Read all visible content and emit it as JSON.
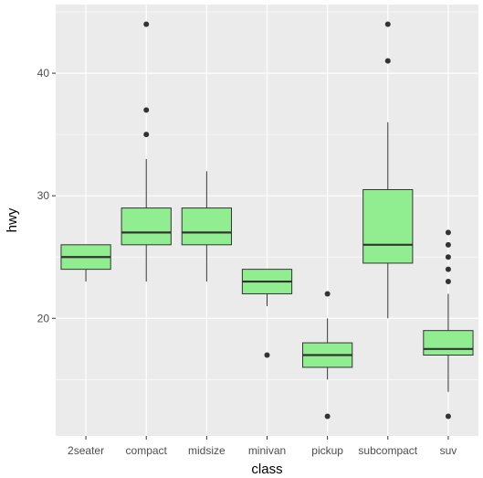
{
  "chart_data": {
    "type": "boxplot",
    "xlabel": "class",
    "ylabel": "hwy",
    "categories": [
      "2seater",
      "compact",
      "midsize",
      "minivan",
      "pickup",
      "subcompact",
      "suv"
    ],
    "ylim": [
      10.4,
      45.6
    ],
    "yticks": [
      20,
      30,
      40
    ],
    "grid": true,
    "legend": "none",
    "colors": {
      "panel": "#ebebeb",
      "grid": "#ffffff",
      "box_fill": "#90ee90",
      "box_stroke": "#333333",
      "text": "#4d4d4d"
    },
    "boxes": [
      {
        "category": "2seater",
        "min": 23,
        "q1": 24,
        "median": 25,
        "q3": 26,
        "max": 26,
        "outliers": []
      },
      {
        "category": "compact",
        "min": 23,
        "q1": 26,
        "median": 27,
        "q3": 29,
        "max": 33,
        "outliers": [
          35,
          37,
          44
        ]
      },
      {
        "category": "midsize",
        "min": 23,
        "q1": 26,
        "median": 27,
        "q3": 29,
        "max": 32,
        "outliers": []
      },
      {
        "category": "minivan",
        "min": 21,
        "q1": 22,
        "median": 23,
        "q3": 24,
        "max": 24,
        "outliers": [
          17
        ]
      },
      {
        "category": "pickup",
        "min": 15,
        "q1": 16,
        "median": 17,
        "q3": 18,
        "max": 20,
        "outliers": [
          12,
          22
        ]
      },
      {
        "category": "subcompact",
        "min": 20,
        "q1": 24.5,
        "median": 26,
        "q3": 30.5,
        "max": 36,
        "outliers": [
          41,
          44
        ]
      },
      {
        "category": "suv",
        "min": 14,
        "q1": 17,
        "median": 17.5,
        "q3": 19,
        "max": 22,
        "outliers": [
          12,
          23,
          24,
          25,
          26,
          27
        ]
      }
    ]
  }
}
